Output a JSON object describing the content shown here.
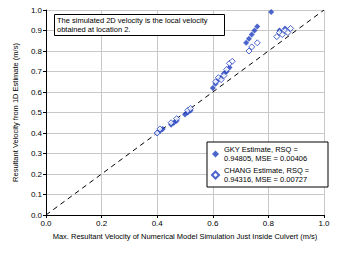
{
  "chart_data": {
    "type": "scatter",
    "annotation": "The simulated 2D velocity is the local velocity obtained at location 2.",
    "x_label": "Max. Resultant Velocity of Numerical Model Simulation Just Inside Culvert (m/s)",
    "y_label": "Resultant Velocity from 1D Estimate (m/s)",
    "xlim": [
      0,
      1
    ],
    "ylim": [
      0,
      1
    ],
    "xticks": [
      {
        "value": 0,
        "label": "0.0"
      },
      0.2,
      0.4,
      0.6,
      0.8,
      {
        "value": 1,
        "label": "1.0"
      }
    ],
    "yticks": [
      {
        "value": 0,
        "label": "0.0"
      },
      0.1,
      0.2,
      0.3,
      0.4,
      0.5,
      0.6,
      0.7,
      0.8,
      0.9,
      {
        "value": 1,
        "label": "1.0"
      }
    ],
    "grid": true,
    "legend": "lower right",
    "diagonal": {
      "x": [
        0,
        1
      ],
      "y": [
        0,
        1
      ],
      "line_style": "dashed",
      "color": "#000000"
    },
    "series": [
      {
        "name": "GKY Estimate, RSQ = 0.94805, MSE = 0.00406",
        "color": "#1f3fbf",
        "marker": "diamond",
        "x": [
          0.4,
          0.41,
          0.42,
          0.45,
          0.46,
          0.47,
          0.5,
          0.51,
          0.52,
          0.6,
          0.61,
          0.62,
          0.63,
          0.64,
          0.65,
          0.66,
          0.72,
          0.73,
          0.74,
          0.75,
          0.76,
          0.81,
          0.84,
          0.86
        ],
        "values": [
          0.4,
          0.41,
          0.42,
          0.44,
          0.45,
          0.46,
          0.49,
          0.5,
          0.51,
          0.62,
          0.64,
          0.66,
          0.67,
          0.69,
          0.7,
          0.72,
          0.84,
          0.86,
          0.88,
          0.9,
          0.92,
          0.99,
          0.9,
          0.91
        ]
      },
      {
        "name": "CHANG Estimate, RSQ = 0.94316, MSE = 0.00727",
        "color": "#1f3fbf",
        "marker": "diamond_open",
        "x": [
          0.4,
          0.41,
          0.45,
          0.47,
          0.51,
          0.52,
          0.61,
          0.62,
          0.63,
          0.64,
          0.65,
          0.66,
          0.67,
          0.73,
          0.74,
          0.76,
          0.83,
          0.84,
          0.85,
          0.86,
          0.87,
          0.88
        ],
        "values": [
          0.4,
          0.42,
          0.45,
          0.47,
          0.51,
          0.52,
          0.65,
          0.67,
          0.66,
          0.68,
          0.71,
          0.74,
          0.75,
          0.8,
          0.82,
          0.84,
          0.87,
          0.89,
          0.88,
          0.9,
          0.89,
          0.91
        ]
      }
    ]
  }
}
